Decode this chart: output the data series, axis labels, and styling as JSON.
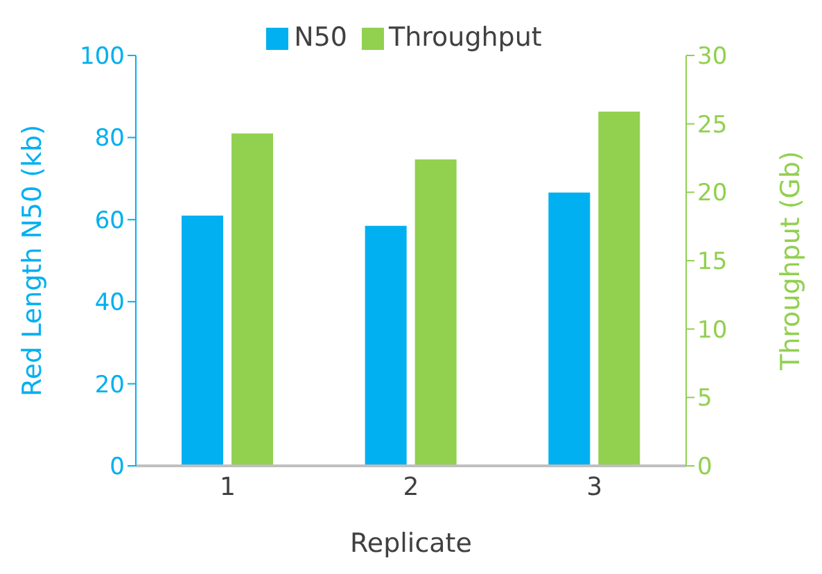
{
  "chart_data": {
    "type": "bar",
    "xlabel": "Replicate",
    "ylabel": "Red Length N50 (kb)",
    "y2label": "Throughput (Gb)",
    "categories": [
      "1",
      "2",
      "3"
    ],
    "series": [
      {
        "name": "N50",
        "color": "#00b0f0",
        "values": [
          61,
          58.5,
          66.6
        ]
      },
      {
        "name": "Throughput",
        "color": "#92d050",
        "values": [
          24.3,
          22.4,
          25.9
        ],
        "axis": "y2"
      }
    ],
    "ylim": [
      0,
      100
    ],
    "yticks": [
      0,
      20,
      40,
      60,
      80,
      100
    ],
    "y2lim": [
      0,
      30
    ],
    "y2ticks": [
      0,
      5,
      10,
      15,
      20,
      25,
      30
    ],
    "grid": false,
    "legend": "top"
  }
}
